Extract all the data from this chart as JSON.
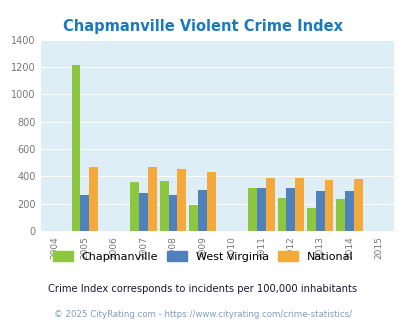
{
  "title": "Chapmanville Violent Crime Index",
  "title_color": "#1a7abf",
  "years": [
    2004,
    2005,
    2006,
    2007,
    2008,
    2009,
    2010,
    2011,
    2012,
    2013,
    2014,
    2015
  ],
  "data_years": [
    2005,
    2007,
    2008,
    2009,
    2011,
    2012,
    2013,
    2014
  ],
  "chapmanville": [
    1215,
    355,
    365,
    190,
    315,
    245,
    165,
    235
  ],
  "west_virginia": [
    265,
    275,
    265,
    300,
    315,
    315,
    290,
    295
  ],
  "national": [
    470,
    470,
    450,
    430,
    390,
    390,
    370,
    380
  ],
  "chapmanville_color": "#8dc63f",
  "west_virginia_color": "#4f81bd",
  "national_color": "#f6a93b",
  "plot_bg": "#ddeef6",
  "ylim": [
    0,
    1400
  ],
  "yticks": [
    0,
    200,
    400,
    600,
    800,
    1000,
    1200,
    1400
  ],
  "grid_color": "#ffffff",
  "footnote1_color": "#1a1a2e",
  "footnote2_color": "#7f9db9",
  "footnote1": "Crime Index corresponds to incidents per 100,000 inhabitants",
  "footnote2": "© 2025 CityRating.com - https://www.cityrating.com/crime-statistics/",
  "legend_labels": [
    "Chapmanville",
    "West Virginia",
    "National"
  ]
}
